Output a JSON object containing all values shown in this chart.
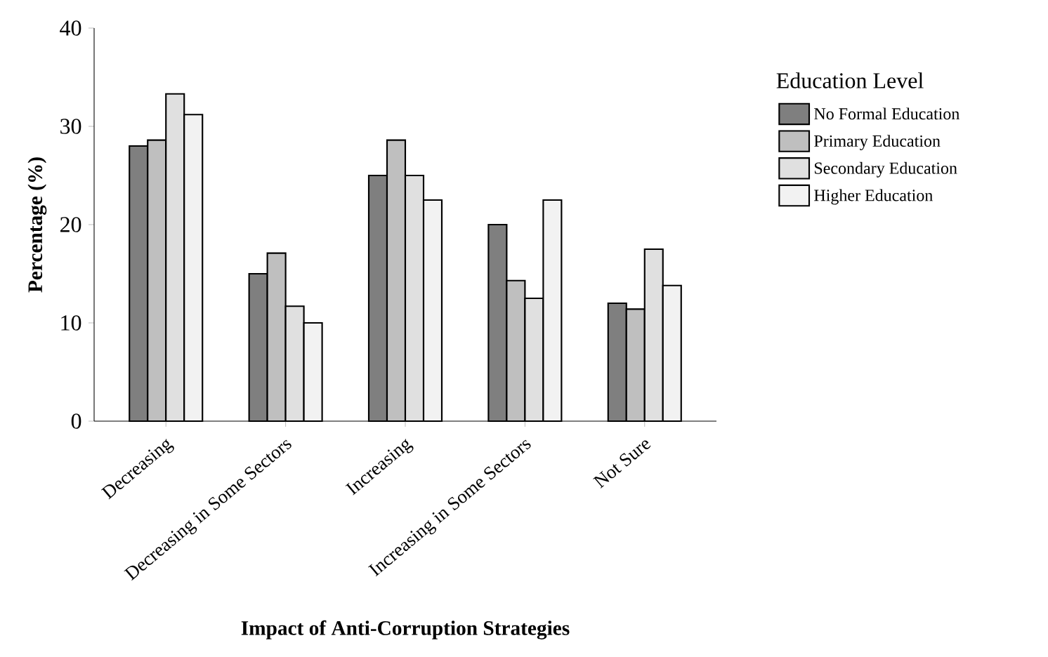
{
  "chart_data": {
    "type": "bar",
    "xlabel": "Impact of Anti-Corruption Strategies",
    "ylabel": "Percentage (%)",
    "legend_title": "Education Level",
    "categories": [
      "Decreasing",
      "Decreasing in Some Sectors",
      "Increasing",
      "Increasing in Some Sectors",
      "Not Sure"
    ],
    "series": [
      {
        "name": "No Formal Education",
        "color": "#7f7f7f",
        "values": [
          28,
          15,
          25,
          20,
          12
        ]
      },
      {
        "name": "Primary Education",
        "color": "#bfbfbf",
        "values": [
          28.6,
          17.1,
          28.6,
          14.3,
          11.4
        ]
      },
      {
        "name": "Secondary Education",
        "color": "#e0e0e0",
        "values": [
          33.3,
          11.7,
          25,
          12.5,
          17.5
        ]
      },
      {
        "name": "Higher Education",
        "color": "#f2f2f2",
        "values": [
          31.2,
          10,
          22.5,
          22.5,
          13.8
        ]
      }
    ],
    "ylim": [
      0,
      40
    ],
    "yticks": [
      0,
      10,
      20,
      30,
      40
    ],
    "grid": false,
    "legend": "right"
  }
}
